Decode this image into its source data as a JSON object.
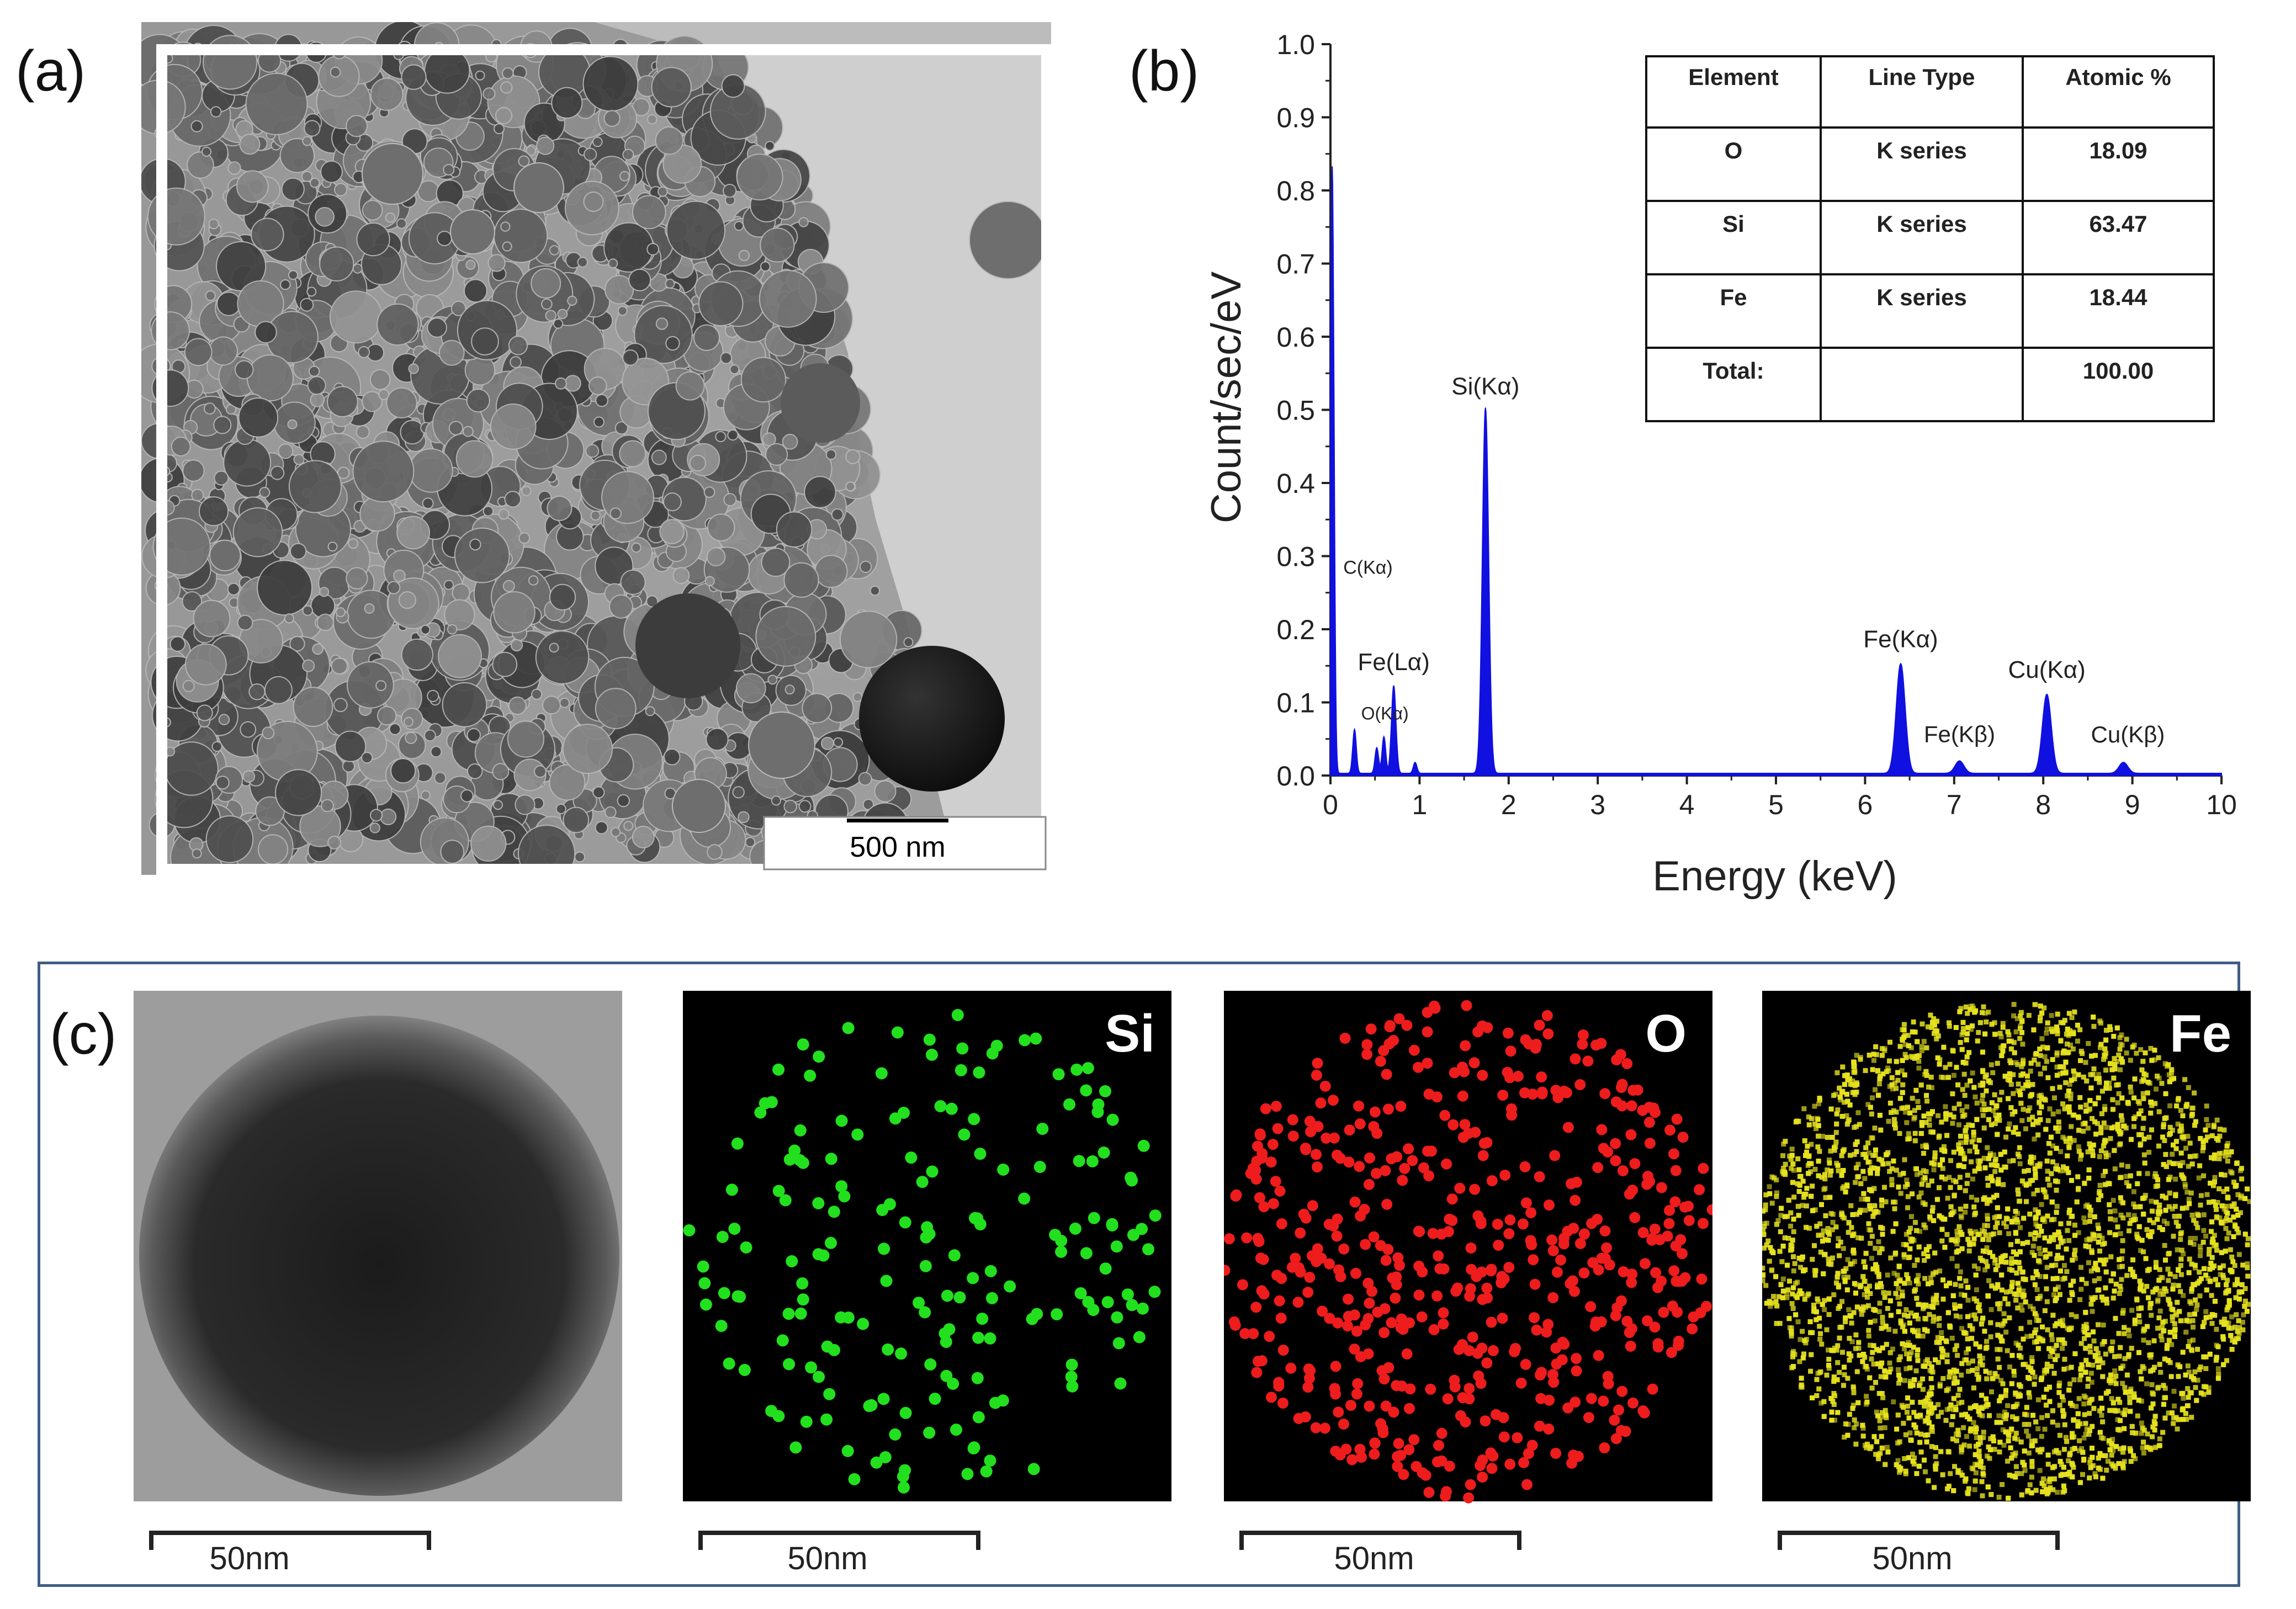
{
  "panels": {
    "a": {
      "label": "(a)",
      "scale_bar": "500 nm"
    },
    "b": {
      "label": "(b)",
      "table": {
        "headers": [
          "Element",
          "Line Type",
          "Atomic %"
        ],
        "rows": [
          [
            "O",
            "K series",
            "18.09"
          ],
          [
            "Si",
            "K series",
            "63.47"
          ],
          [
            "Fe",
            "K series",
            "18.44"
          ],
          [
            "Total:",
            "",
            "100.00"
          ]
        ]
      }
    },
    "c": {
      "label": "(c)",
      "maps": [
        {
          "element": "",
          "color": "#808080",
          "scale_bar": "50nm"
        },
        {
          "element": "Si",
          "color": "#22e01e",
          "scale_bar": "50nm"
        },
        {
          "element": "O",
          "color": "#ee1c1c",
          "scale_bar": "50nm"
        },
        {
          "element": "Fe",
          "color": "#e6e21e",
          "scale_bar": "50nm"
        }
      ]
    }
  },
  "chart_data": {
    "type": "line",
    "title": "",
    "xlabel": "Energy (keV)",
    "ylabel": "Count/sec/eV",
    "xlim": [
      0,
      10
    ],
    "ylim": [
      0,
      1.0
    ],
    "x_ticks": [
      "0",
      "1",
      "2",
      "3",
      "4",
      "5",
      "6",
      "7",
      "8",
      "9",
      "10"
    ],
    "y_ticks": [
      "0.0",
      "0.1",
      "0.2",
      "0.3",
      "0.4",
      "0.5",
      "0.6",
      "0.7",
      "0.8",
      "0.9",
      "1.0"
    ],
    "series_color": "#1010e0",
    "peaks": [
      {
        "label": "C(Kα)",
        "x": 0.02,
        "y": 0.83,
        "width": 0.02
      },
      {
        "label": "O(Kα)",
        "x": 0.27,
        "y": 0.06,
        "width": 0.02
      },
      {
        "label": "",
        "x": 0.52,
        "y": 0.035,
        "width": 0.02
      },
      {
        "label": "",
        "x": 0.6,
        "y": 0.05,
        "width": 0.02
      },
      {
        "label": "Fe(Lα)",
        "x": 0.71,
        "y": 0.12,
        "width": 0.025
      },
      {
        "label": "",
        "x": 0.95,
        "y": 0.015,
        "width": 0.02
      },
      {
        "label": "Si(Kα)",
        "x": 1.74,
        "y": 0.5,
        "width": 0.035
      },
      {
        "label": "Fe(Kα)",
        "x": 6.4,
        "y": 0.15,
        "width": 0.05
      },
      {
        "label": "Fe(Kβ)",
        "x": 7.06,
        "y": 0.017,
        "width": 0.05
      },
      {
        "label": "Cu(Kα)",
        "x": 8.04,
        "y": 0.108,
        "width": 0.05
      },
      {
        "label": "Cu(Kβ)",
        "x": 8.9,
        "y": 0.015,
        "width": 0.05
      }
    ]
  }
}
